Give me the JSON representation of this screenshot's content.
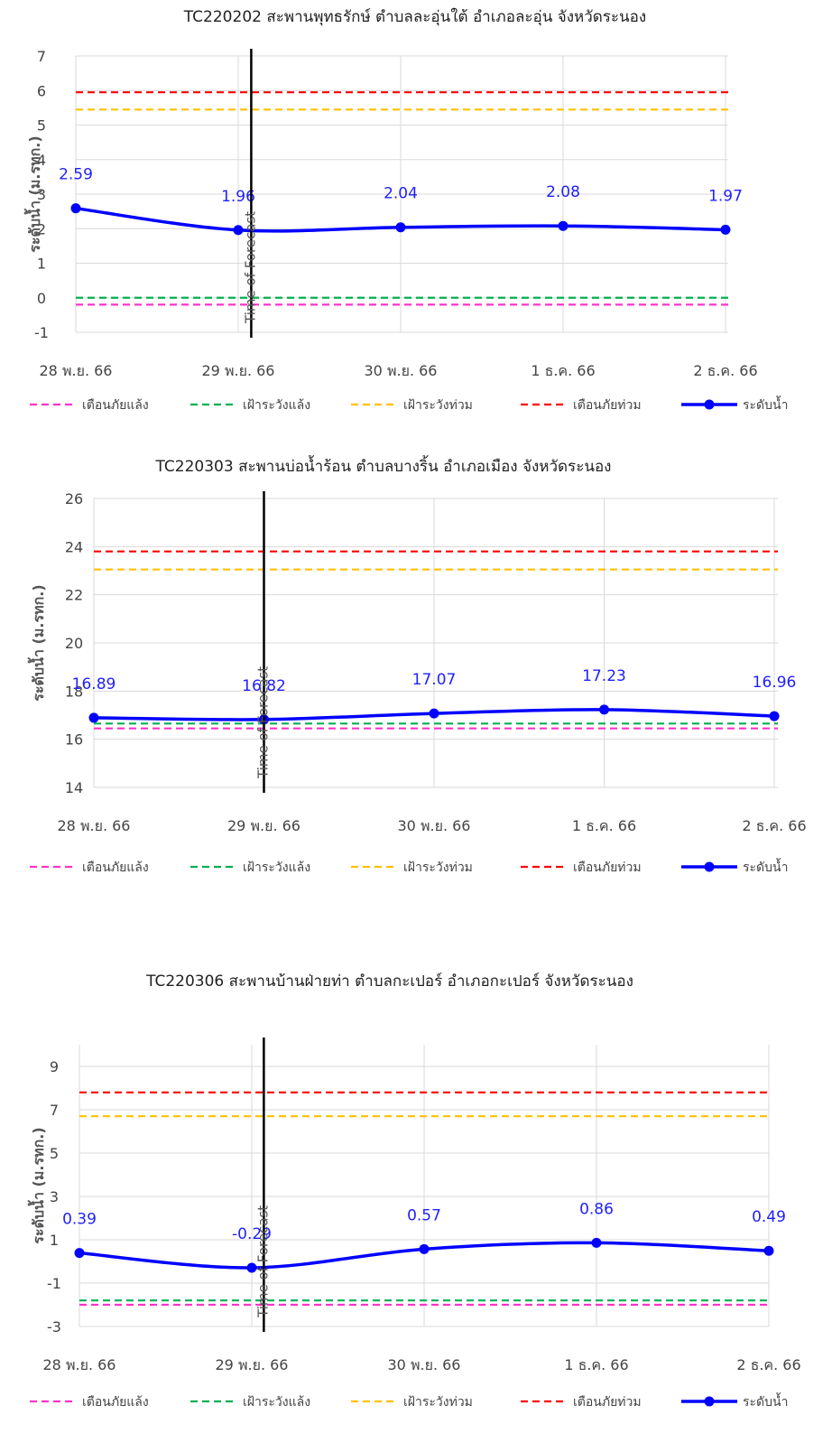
{
  "legend_labels": {
    "dry_warning": "เตือนภัยแล้ง",
    "dry_watch": "เฝ้าระวังแล้ง",
    "flood_watch": "เฝ้าระวังท่วม",
    "flood_warning": "เตือนภัยท่วม",
    "water_level": "ระดับน้ำ"
  },
  "colors": {
    "dry_warning": "#ff33cc",
    "dry_watch": "#00b050",
    "flood_watch": "#ffc000",
    "flood_warning": "#ff0000",
    "water_level": "#0000ff",
    "forecast_line": "#000000",
    "grid": "#d9d9d9"
  },
  "forecast_label": "Time of Forecast",
  "chart_data": [
    {
      "type": "line",
      "title": "TC220202 สะพานพุทธรักษ์ ตำบลละอุ่นใต้ อำเภอละอุ่น จังหวัดระนอง",
      "ylabel": "ระดับน้ำ (ม.รทก.)",
      "xlabel": "",
      "categories": [
        "28 พ.ย. 66",
        "29 พ.ย. 66",
        "30 พ.ย. 66",
        "1 ธ.ค. 66",
        "2 ธ.ค. 66"
      ],
      "ylim": [
        -1,
        7
      ],
      "yticks": [
        -1,
        0,
        1,
        2,
        3,
        4,
        5,
        6,
        7
      ],
      "ytick_labels": [
        "-1",
        "0",
        "1",
        "2",
        "3",
        "4",
        "5",
        "6",
        "7"
      ],
      "grid": true,
      "legend_position": "bottom",
      "series": [
        {
          "name": "ระดับน้ำ",
          "values": [
            2.59,
            1.96,
            2.04,
            2.08,
            1.97
          ],
          "labels": [
            "2.59",
            "1.96",
            "2.04",
            "2.08",
            "1.97"
          ]
        }
      ],
      "thresholds": {
        "flood_warning": 5.95,
        "flood_watch": 5.45,
        "dry_watch": 0.0,
        "dry_warning": -0.2
      },
      "forecast_index": 1.08
    },
    {
      "type": "line",
      "title": "TC220303 สะพานบ่อน้ำร้อน ตำบลบางริ้น อำเภอเมือง จังหวัดระนอง",
      "ylabel": "ระดับน้ำ (ม.รทก.)",
      "xlabel": "",
      "categories": [
        "28 พ.ย. 66",
        "29 พ.ย. 66",
        "30 พ.ย. 66",
        "1 ธ.ค. 66",
        "2 ธ.ค. 66"
      ],
      "ylim": [
        14,
        26
      ],
      "yticks": [
        14,
        16,
        18,
        20,
        22,
        24,
        26
      ],
      "ytick_labels": [
        "14",
        "16",
        "18",
        "20",
        "22",
        "24",
        "26"
      ],
      "grid": true,
      "legend_position": "bottom",
      "series": [
        {
          "name": "ระดับน้ำ",
          "values": [
            16.89,
            16.82,
            17.07,
            17.23,
            16.96
          ],
          "labels": [
            "16.89",
            "16.82",
            "17.07",
            "17.23",
            "16.96"
          ]
        }
      ],
      "thresholds": {
        "flood_warning": 23.8,
        "flood_watch": 23.05,
        "dry_watch": 16.65,
        "dry_warning": 16.45
      },
      "forecast_index": 1.0
    },
    {
      "type": "line",
      "title": "TC220306 สะพานบ้านฝ่ายท่า ตำบลกะเปอร์ อำเภอกะเปอร์ จังหวัดระนอง",
      "ylabel": "ระดับน้ำ (ม.รทก.)",
      "xlabel": "",
      "categories": [
        "28 พ.ย. 66",
        "29 พ.ย. 66",
        "30 พ.ย. 66",
        "1 ธ.ค. 66",
        "2 ธ.ค. 66"
      ],
      "ylim": [
        -3,
        10
      ],
      "yticks": [
        -3,
        -1,
        1,
        3,
        5,
        7,
        9
      ],
      "ytick_labels": [
        "-3",
        "-1",
        "1",
        "3",
        "5",
        "7",
        "9"
      ],
      "grid": true,
      "legend_position": "bottom",
      "series": [
        {
          "name": "ระดับน้ำ",
          "values": [
            0.39,
            -0.29,
            0.57,
            0.86,
            0.49
          ],
          "labels": [
            "0.39",
            "-0.29",
            "0.57",
            "0.86",
            "0.49"
          ]
        }
      ],
      "thresholds": {
        "flood_warning": 7.8,
        "flood_watch": 6.7,
        "dry_watch": -1.8,
        "dry_warning": -2.0
      },
      "forecast_index": 1.07
    }
  ]
}
